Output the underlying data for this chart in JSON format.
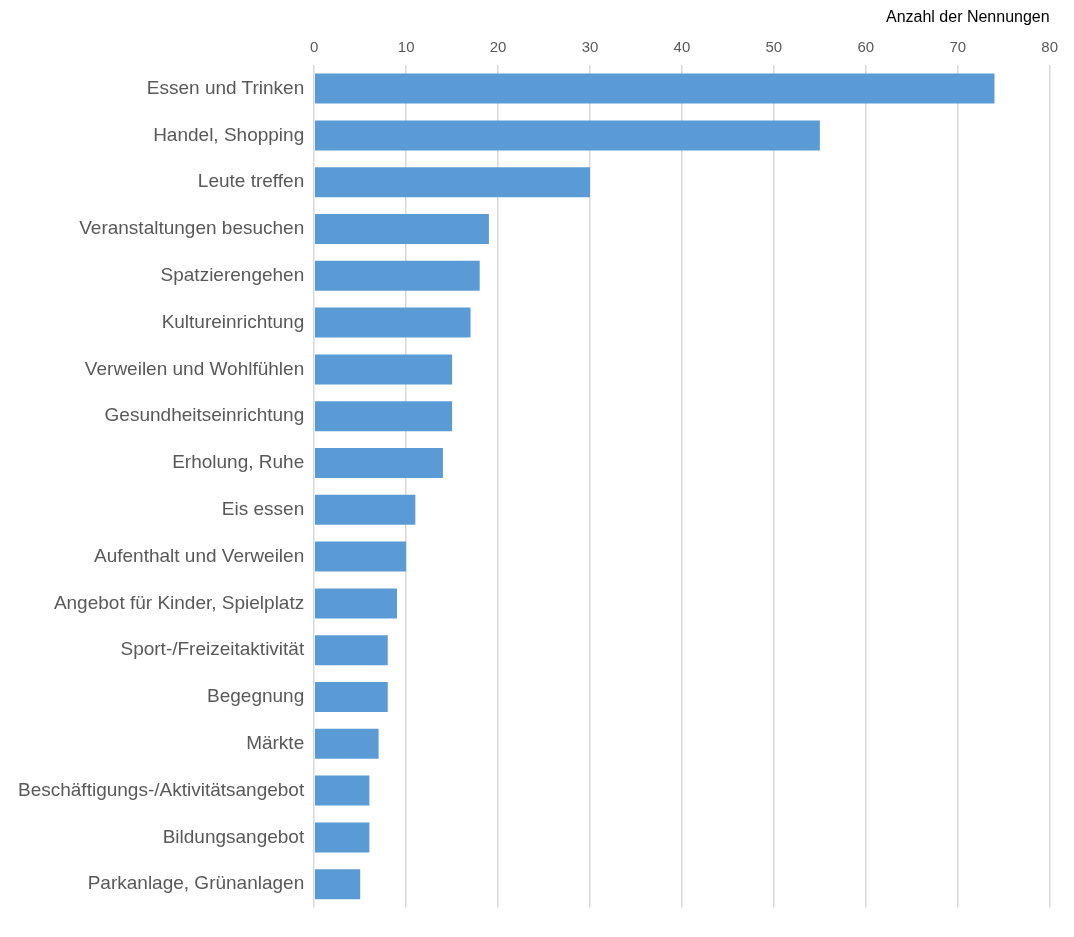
{
  "chart_data": {
    "type": "bar",
    "orientation": "horizontal",
    "xlabel": "Anzahl der Nennungen",
    "categories": [
      "Essen und Trinken",
      "Handel, Shopping",
      "Leute treffen",
      "Veranstaltungen besuchen",
      "Spatzierengehen",
      "Kultureinrichtung",
      "Verweilen und Wohlfühlen",
      "Gesundheitseinrichtung",
      "Erholung, Ruhe",
      "Eis essen",
      "Aufenthalt und Verweilen",
      "Angebot für Kinder, Spielplatz",
      "Sport-/Freizeitaktivität",
      "Begegnung",
      "Märkte",
      "Beschäftigungs-/Aktivitätsangebot",
      "Bildungsangebot",
      "Parkanlage, Grünanlagen"
    ],
    "values": [
      74,
      55,
      30,
      19,
      18,
      17,
      15,
      15,
      14,
      11,
      10,
      9,
      8,
      8,
      7,
      6,
      6,
      5
    ],
    "color": "#5b9bd5",
    "xlim": [
      0,
      80
    ],
    "xticks": [
      0,
      10,
      20,
      30,
      40,
      50,
      60,
      70,
      80
    ],
    "grid": "x"
  }
}
